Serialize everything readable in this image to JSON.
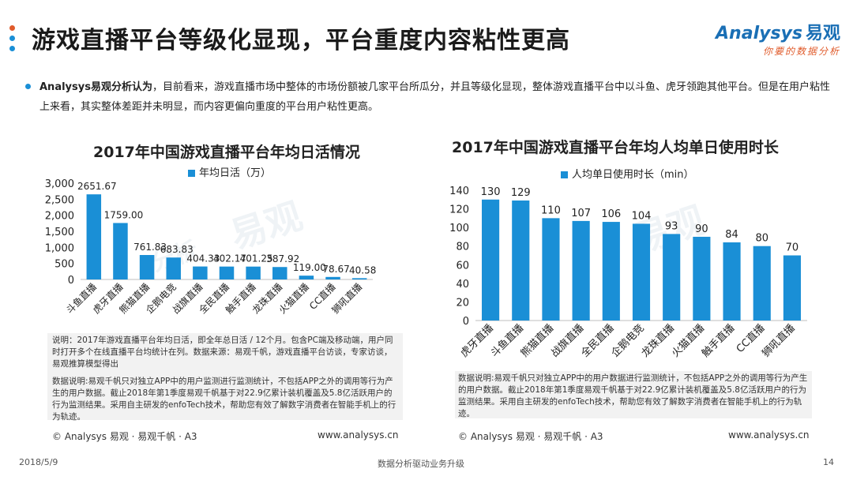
{
  "header": {
    "title": "游戏直播平台等级化显现，平台重度内容粘性更高",
    "dot_colors": [
      "#e05b2b",
      "#1a8fd6",
      "#1a8fd6"
    ]
  },
  "logo": {
    "brand": "Analysys",
    "brand_cn": "易观",
    "tagline": "你要的数据分析"
  },
  "intro": {
    "lead": "Analysys易观分析认为",
    "text": "，目前看来，游戏直播市场中整体的市场份额被几家平台所瓜分，并且等级化显现，整体游戏直播平台中以斗鱼、虎牙领跑其他平台。但是在用户粘性上来看，其实整体差距并未明显，而内容更偏向重度的平台用户粘性更高。"
  },
  "watermark": {
    "text1": "易观",
    "text2": "分析"
  },
  "chart_data": [
    {
      "type": "bar",
      "title": "2017年中国游戏直播平台年均日活情况",
      "series": [
        {
          "name": "年均日活（万）",
          "values": [
            2651.67,
            1759.0,
            761.83,
            683.83,
            404.33,
            402.17,
            401.25,
            387.92,
            119.0,
            78.67,
            40.58
          ]
        }
      ],
      "categories": [
        "斗鱼直播",
        "虎牙直播",
        "熊猫直播",
        "企鹅电竞",
        "战旗直播",
        "全民直播",
        "触手直播",
        "龙珠直播",
        "火猫直播",
        "CC直播",
        "狮吼直播"
      ],
      "value_labels": [
        "2651.67",
        "1759.00",
        "761.83",
        "683.83",
        "404.33",
        "402.17",
        "401.25",
        "387.92",
        "119.00",
        "78.67",
        "40.58"
      ],
      "ylim": [
        0,
        3000
      ],
      "yticks": [
        0,
        500,
        1000,
        1500,
        2000,
        2500,
        3000
      ],
      "ytick_labels": [
        "0",
        "500",
        "1,000",
        "1,500",
        "2,000",
        "2,500",
        "3,000"
      ],
      "color": "#1a8fd6",
      "legend": "top",
      "grid": false
    },
    {
      "type": "bar",
      "title": "2017年中国游戏直播平台年均人均单日使用时长",
      "series": [
        {
          "name": "人均单日使用时长（min）",
          "values": [
            130,
            129,
            110,
            107,
            106,
            104,
            93,
            90,
            84,
            80,
            70
          ]
        }
      ],
      "categories": [
        "虎牙直播",
        "斗鱼直播",
        "熊猫直播",
        "战旗直播",
        "全民直播",
        "企鹅电竞",
        "龙珠直播",
        "火猫直播",
        "触手直播",
        "CC直播",
        "狮吼直播"
      ],
      "value_labels": [
        "130",
        "129",
        "110",
        "107",
        "106",
        "104",
        "93",
        "90",
        "84",
        "80",
        "70"
      ],
      "ylim": [
        0,
        140
      ],
      "yticks": [
        0,
        20,
        40,
        60,
        80,
        100,
        120,
        140
      ],
      "ytick_labels": [
        "0",
        "20",
        "40",
        "60",
        "80",
        "100",
        "120",
        "140"
      ],
      "color": "#1a8fd6",
      "legend": "top",
      "grid": false
    }
  ],
  "notes": {
    "left_note": "说明：2017年游戏直播平台年均日活，即全年总日活 / 12个月。包含PC端及移动端，用户同时打开多个在线直播平台均统计在列。数据来源：易观千帆，游戏直播平台访谈，专家访谈，易观推算模型得出",
    "left_data_note": "数据说明:易观千帆只对独立APP中的用户监测进行监测统计，不包括APP之外的调用等行为产生的用户数据。截止2018年第1季度易观千帆基于对22.9亿累计装机覆盖及5.8亿活跃用户的行为监测结果。采用自主研发的enfoTech技术，帮助您有效了解数字消费者在智能手机上的行为轨迹。",
    "right_data_note": "数据说明:易观千帆只对独立APP中的用户数据进行监测统计，不包括APP之外的调用等行为产生的用户数据。截止2018年第1季度易观千帆基于对22.9亿累计装机覆盖及5.8亿活跃用户的行为监测结果。采用自主研发的enfoTech技术，帮助您有效了解数字消费者在智能手机上的行为轨迹。",
    "left_copyright": "© Analysys 易观 · 易观千帆 · A3",
    "left_website": "www.analysys.cn",
    "right_copyright": "© Analysys 易观 · 易观千帆 · A3",
    "right_website": "www.analysys.cn"
  },
  "footer": {
    "date": "2018/5/9",
    "slogan": "数据分析驱动业务升级",
    "page_number": "14"
  }
}
